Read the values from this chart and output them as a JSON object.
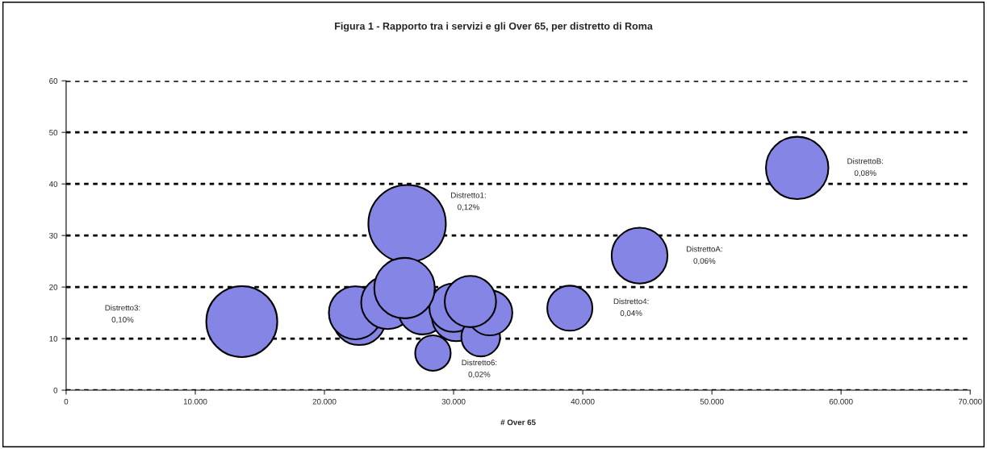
{
  "chart_data": {
    "type": "bubble",
    "title": "Figura 1 - Rapporto tra i servizi e gli Over 65, per distretto di Roma",
    "xlabel": "# Over 65",
    "x": [
      26400,
      13600,
      22700,
      22400,
      24900,
      27600,
      30200,
      30000,
      32100,
      32800,
      31300,
      26200,
      28400,
      39000,
      44400,
      56600
    ],
    "values": [
      32.3,
      13.3,
      13.9,
      15.0,
      17.0,
      15.5,
      14.2,
      16.0,
      10.3,
      15.0,
      17.2,
      19.8,
      7.2,
      15.9,
      26.1,
      43.1
    ],
    "sizes": [
      1,
      0.84,
      0.47,
      0.47,
      0.47,
      0.39,
      0.39,
      0.39,
      0.25,
      0.34,
      0.44,
      0.61,
      0.21,
      0.34,
      0.52,
      0.65
    ],
    "color": "#8585e6",
    "xlim": [
      0,
      70000
    ],
    "ylim": [
      0,
      60
    ],
    "xticks": [
      0,
      {
        "value": 10000,
        "label": "10.000"
      },
      {
        "value": 20000,
        "label": "20.000"
      },
      {
        "value": 30000,
        "label": "30.000"
      },
      {
        "value": 40000,
        "label": "40.000"
      },
      {
        "value": 50000,
        "label": "50.000"
      },
      {
        "value": 60000,
        "label": "60.000"
      },
      {
        "value": 70000,
        "label": "70.000"
      }
    ],
    "yticks": [
      0,
      10,
      20,
      30,
      40,
      50,
      60
    ],
    "grid": "y",
    "line_style": "dotted",
    "annotations": [
      "Distretto1:\n0,12%",
      "Distretto3:\n0,10%",
      "Distretto6:\n0,02%",
      "Distretto4:\n0,04%",
      "DistrettoA:\n0,06%",
      "DistrettoB:\n0,08%"
    ]
  }
}
